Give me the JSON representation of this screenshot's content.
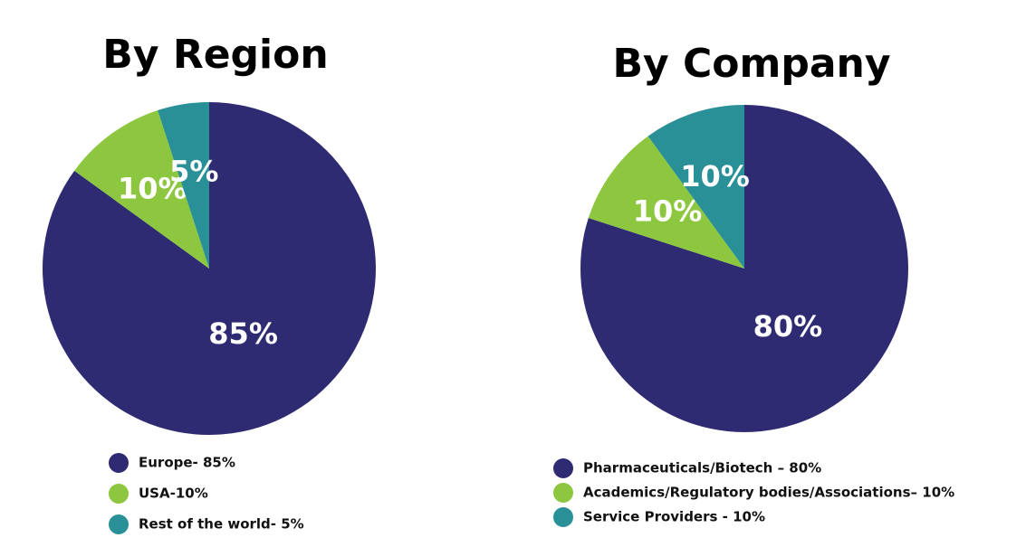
{
  "chart_data": [
    {
      "type": "pie",
      "title": "By Region",
      "categories": [
        "Europe- 85%",
        "USA-10%",
        "Rest of the world- 5%"
      ],
      "values": [
        85,
        10,
        5
      ],
      "value_labels": [
        "85%",
        "10%",
        "5%"
      ],
      "colors": [
        "#2e2b72",
        "#8dc63f",
        "#2a9097"
      ]
    },
    {
      "type": "pie",
      "title": "By Company",
      "categories": [
        "Pharmaceuticals/Biotech – 80%",
        "Academics/Regulatory bodies/Associations– 10%",
        "Service Providers - 10%"
      ],
      "values": [
        80,
        10,
        10
      ],
      "value_labels": [
        "80%",
        "10%",
        "10%"
      ],
      "colors": [
        "#2e2b72",
        "#8dc63f",
        "#2a9097"
      ]
    }
  ]
}
